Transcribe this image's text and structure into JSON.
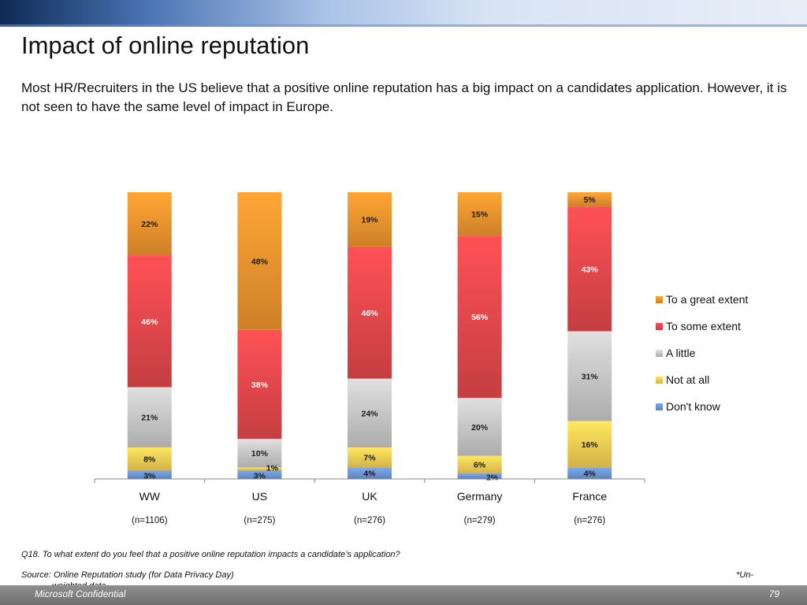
{
  "slide": {
    "title": "Impact of online reputation",
    "subtitle": "Most HR/Recruiters in the US believe that a positive online reputation has a big impact on a candidates application. However, it is not seen to have the same level of impact in Europe.",
    "question": "Q18. To what extent do you feel that a positive online reputation impacts a candidate’s application?",
    "source": "Source: Online Reputation study (for Data Privacy Day)",
    "unweighted_mark": "*Un-",
    "unweighted_rest": "weighted data",
    "footer_left": "Microsoft Confidential",
    "page_number": "79"
  },
  "chart_data": {
    "type": "bar",
    "stacked": true,
    "percent_stacked": true,
    "categories": [
      "WW",
      "US",
      "UK",
      "Germany",
      "France"
    ],
    "sample_sizes": [
      "(n=1106)",
      "(n=275)",
      "(n=276)",
      "(n=279)",
      "(n=276)"
    ],
    "series": [
      {
        "name": "Don't know",
        "values": [
          3,
          3,
          4,
          2,
          4
        ],
        "color": "#6f98d6"
      },
      {
        "name": "Not at all",
        "values": [
          8,
          1,
          7,
          6,
          16
        ],
        "color": "#f6cf55"
      },
      {
        "name": "A little",
        "values": [
          21,
          10,
          24,
          20,
          31
        ],
        "color": "#c8c8c8"
      },
      {
        "name": "To some extent",
        "values": [
          46,
          38,
          46,
          56,
          43
        ],
        "color": "#e4484d"
      },
      {
        "name": "To a great extent",
        "values": [
          22,
          48,
          19,
          15,
          5
        ],
        "color": "#f0952f"
      }
    ],
    "legend_position": "right",
    "grid": false
  }
}
